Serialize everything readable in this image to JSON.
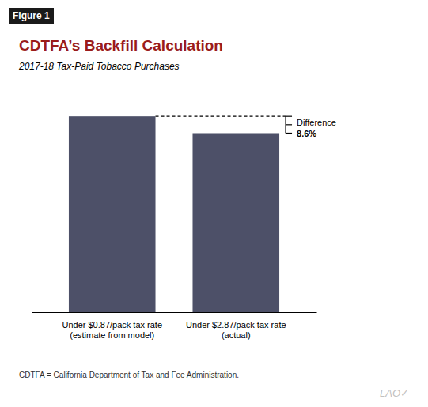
{
  "chart_data": {
    "type": "bar",
    "title": "CDTFA’s Backfill Calculation",
    "subtitle": "2017-18 Tax-Paid Tobacco Purchases",
    "categories": [
      "Under $0.87/pack tax rate\n(estimate from model)",
      "Under $2.87/pack tax rate\n(actual)"
    ],
    "values": [
      100,
      91.4
    ],
    "color": "#4d5068",
    "ylim": [
      0,
      115
    ],
    "tick_labels": "x",
    "grid": false,
    "annotations": [
      "Figure 1",
      "Difference",
      "8.6%",
      "CDTFA = California Department of Tax and Fee Administration.",
      "LAO✓"
    ]
  }
}
